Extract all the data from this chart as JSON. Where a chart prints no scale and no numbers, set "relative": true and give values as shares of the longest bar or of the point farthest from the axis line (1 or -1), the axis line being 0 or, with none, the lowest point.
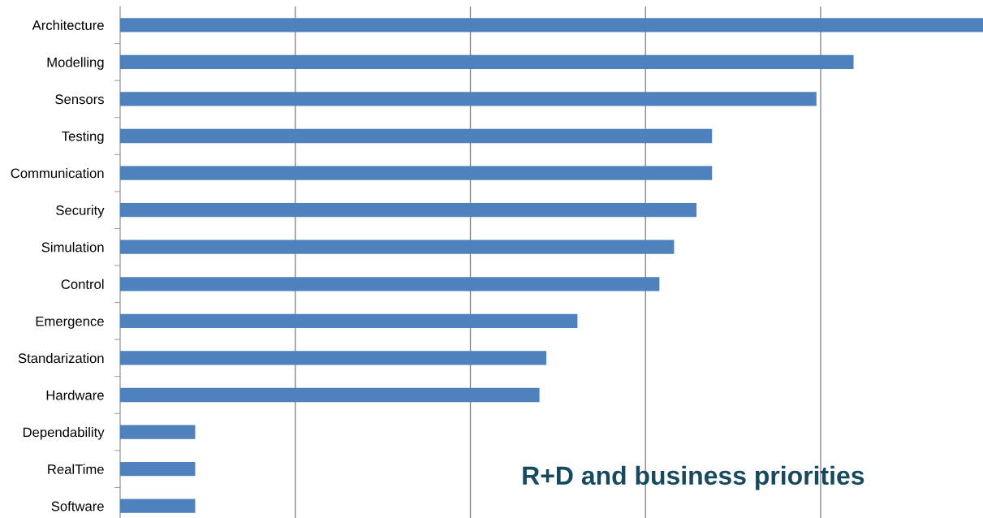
{
  "chart_data": {
    "type": "bar",
    "orientation": "horizontal",
    "relative": true,
    "title": "R+D and business priorities",
    "categories": [
      "Architecture",
      "Modelling",
      "Sensors",
      "Testing",
      "Communication",
      "Security",
      "Simulation",
      "Control",
      "Emergence",
      "Standarization",
      "Hardware",
      "Dependability",
      "RealTime",
      "Software"
    ],
    "values": [
      1,
      0.85,
      0.807,
      0.686,
      0.686,
      0.668,
      0.642,
      0.625,
      0.53,
      0.494,
      0.486,
      0.087,
      0.087,
      0.087
    ],
    "color": "#4f81bd",
    "grid": "x"
  }
}
